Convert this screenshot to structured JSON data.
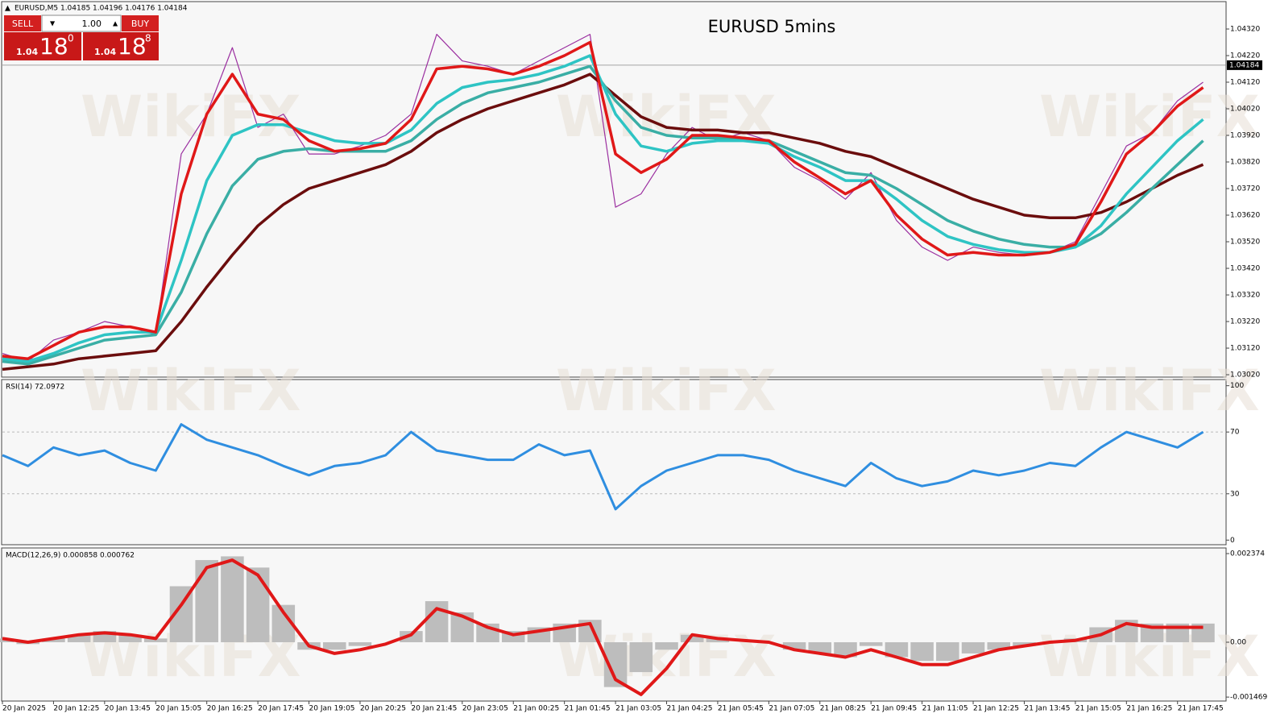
{
  "header": {
    "symbol_info": "EURUSD,M5  1.04185 1.04196 1.04176 1.04184",
    "sell": "SELL",
    "buy": "BUY",
    "lot": "1.00",
    "sell_big": "1.04",
    "sell_pips": "18",
    "sell_frac": "0",
    "buy_big": "1.04",
    "buy_pips": "18",
    "buy_frac": "8",
    "watermark": "WikiFX"
  },
  "chart_data": [
    {
      "type": "line",
      "title": "EURUSD 5mins",
      "x": [
        0,
        1,
        2,
        3,
        4,
        5,
        6,
        7,
        8,
        9,
        10,
        11,
        12,
        13,
        14,
        15,
        16,
        17,
        18,
        19,
        20,
        21,
        22,
        23,
        24,
        25,
        26,
        27,
        28,
        29,
        30,
        31,
        32,
        33,
        34,
        35,
        36,
        37,
        38,
        39,
        40,
        41,
        42,
        43,
        44,
        45,
        46,
        47
      ],
      "xlim": [
        0,
        47.9
      ],
      "series": [
        {
          "color": "#9b2fa0",
          "values": [
            1.031,
            1.0307,
            1.0315,
            1.0318,
            1.0322,
            1.032,
            1.0317,
            1.0385,
            1.04,
            1.0425,
            1.0395,
            1.04,
            1.0385,
            1.0385,
            1.0388,
            1.0392,
            1.04,
            1.043,
            1.042,
            1.0418,
            1.0415,
            1.042,
            1.0425,
            1.043,
            1.0365,
            1.037,
            1.0385,
            1.0395,
            1.039,
            1.0393,
            1.039,
            1.038,
            1.0375,
            1.0368,
            1.0378,
            1.036,
            1.035,
            1.0345,
            1.035,
            1.0348,
            1.0347,
            1.0348,
            1.0352,
            1.037,
            1.0388,
            1.0393,
            1.0405,
            1.0412
          ]
        },
        {
          "color": "#6b0d0d",
          "values": [
            1.0304,
            1.0305,
            1.0306,
            1.0308,
            1.0309,
            1.031,
            1.0311,
            1.0322,
            1.0335,
            1.0347,
            1.0358,
            1.0366,
            1.0372,
            1.0375,
            1.0378,
            1.0381,
            1.0386,
            1.0393,
            1.0398,
            1.0402,
            1.0405,
            1.0408,
            1.0411,
            1.0415,
            1.0407,
            1.0399,
            1.0395,
            1.0394,
            1.0394,
            1.0393,
            1.0393,
            1.0391,
            1.0389,
            1.0386,
            1.0384,
            1.038,
            1.0376,
            1.0372,
            1.0368,
            1.0365,
            1.0362,
            1.0361,
            1.0361,
            1.0363,
            1.0367,
            1.0372,
            1.0377,
            1.0381
          ]
        },
        {
          "color": "#3aaea5",
          "values": [
            1.0307,
            1.0306,
            1.0309,
            1.0312,
            1.0315,
            1.0316,
            1.0317,
            1.0333,
            1.0355,
            1.0373,
            1.0383,
            1.0386,
            1.0387,
            1.0386,
            1.0386,
            1.0386,
            1.039,
            1.0398,
            1.0404,
            1.0408,
            1.041,
            1.0412,
            1.0415,
            1.0418,
            1.0405,
            1.0395,
            1.0392,
            1.0391,
            1.0391,
            1.0391,
            1.039,
            1.0386,
            1.0382,
            1.0378,
            1.0377,
            1.0372,
            1.0366,
            1.036,
            1.0356,
            1.0353,
            1.0351,
            1.035,
            1.035,
            1.0355,
            1.0363,
            1.0372,
            1.0381,
            1.039
          ]
        },
        {
          "color": "#2ec4c4",
          "values": [
            1.0308,
            1.0307,
            1.031,
            1.0314,
            1.0317,
            1.0318,
            1.0318,
            1.0345,
            1.0375,
            1.0392,
            1.0396,
            1.0396,
            1.0393,
            1.039,
            1.0389,
            1.0389,
            1.0394,
            1.0404,
            1.041,
            1.0412,
            1.0413,
            1.0415,
            1.0418,
            1.0422,
            1.04,
            1.0388,
            1.0386,
            1.0389,
            1.039,
            1.039,
            1.0389,
            1.0384,
            1.038,
            1.0375,
            1.0375,
            1.0368,
            1.036,
            1.0354,
            1.0351,
            1.0349,
            1.0348,
            1.0348,
            1.035,
            1.0358,
            1.037,
            1.038,
            1.039,
            1.0398
          ]
        },
        {
          "color": "#e01818",
          "values": [
            1.0309,
            1.0308,
            1.0313,
            1.0318,
            1.032,
            1.032,
            1.0318,
            1.037,
            1.04,
            1.0415,
            1.04,
            1.0398,
            1.039,
            1.0386,
            1.0387,
            1.0389,
            1.0398,
            1.0417,
            1.0418,
            1.0417,
            1.0415,
            1.0418,
            1.0422,
            1.0427,
            1.0385,
            1.0378,
            1.0383,
            1.0392,
            1.0392,
            1.0391,
            1.039,
            1.0382,
            1.0376,
            1.037,
            1.0375,
            1.0362,
            1.0353,
            1.0347,
            1.0348,
            1.0347,
            1.0347,
            1.0348,
            1.0351,
            1.0367,
            1.0385,
            1.0393,
            1.0403,
            1.041
          ]
        }
      ],
      "ylim": [
        1.03011,
        1.04423
      ],
      "yticks": [
        {
          "value": 1.0302,
          "label": "1.03020"
        },
        {
          "value": 1.0312,
          "label": "1.03120"
        },
        {
          "value": 1.0322,
          "label": "1.03220"
        },
        {
          "value": 1.0332,
          "label": "1.03320"
        },
        {
          "value": 1.0342,
          "label": "1.03420"
        },
        {
          "value": 1.0352,
          "label": "1.03520"
        },
        {
          "value": 1.0362,
          "label": "1.03620"
        },
        {
          "value": 1.0372,
          "label": "1.03720"
        },
        {
          "value": 1.0382,
          "label": "1.03820"
        },
        {
          "value": 1.0392,
          "label": "1.03920"
        },
        {
          "value": 1.0402,
          "label": "1.04020"
        },
        {
          "value": 1.0412,
          "label": "1.04120"
        },
        {
          "value": 1.0422,
          "label": "1.04220"
        },
        {
          "value": 1.0432,
          "label": "1.04320"
        }
      ],
      "current_price": {
        "value": 1.04184,
        "label": "1.04184"
      }
    },
    {
      "type": "line",
      "title": "RSI(14) 72.0972",
      "x": [
        0,
        1,
        2,
        3,
        4,
        5,
        6,
        7,
        8,
        9,
        10,
        11,
        12,
        13,
        14,
        15,
        16,
        17,
        18,
        19,
        20,
        21,
        22,
        23,
        24,
        25,
        26,
        27,
        28,
        29,
        30,
        31,
        32,
        33,
        34,
        35,
        36,
        37,
        38,
        39,
        40,
        41,
        42,
        43,
        44,
        45,
        46,
        47
      ],
      "xlim": [
        0,
        47.9
      ],
      "series": [
        {
          "color": "#2f8ee0",
          "values": [
            55,
            48,
            60,
            55,
            58,
            50,
            45,
            75,
            65,
            60,
            55,
            48,
            42,
            48,
            50,
            55,
            70,
            58,
            55,
            52,
            52,
            62,
            55,
            58,
            20,
            35,
            45,
            50,
            55,
            55,
            52,
            45,
            40,
            35,
            50,
            40,
            35,
            38,
            45,
            42,
            45,
            50,
            48,
            60,
            70,
            65,
            60,
            70
          ]
        }
      ],
      "ylim": [
        -3,
        104
      ],
      "yticks": [
        0,
        30,
        70,
        100
      ],
      "levels": [
        30,
        70
      ]
    },
    {
      "type": "macd",
      "title": "MACD(12,26,9) 0.000858 0.000762",
      "x": [
        0,
        1,
        2,
        3,
        4,
        5,
        6,
        7,
        8,
        9,
        10,
        11,
        12,
        13,
        14,
        15,
        16,
        17,
        18,
        19,
        20,
        21,
        22,
        23,
        24,
        25,
        26,
        27,
        28,
        29,
        30,
        31,
        32,
        33,
        34,
        35,
        36,
        37,
        38,
        39,
        40,
        41,
        42,
        43,
        44,
        45,
        46,
        47
      ],
      "xlim": [
        0,
        47.9
      ],
      "series": [
        {
          "color": "#bdbdbd",
          "values": [
            0.0001,
            -5e-05,
            0.0001,
            0.0002,
            0.0003,
            0.0002,
            0.0001,
            0.0015,
            0.0022,
            0.0023,
            0.002,
            0.001,
            -0.0002,
            -0.0002,
            -0.0001,
            0,
            0.0003,
            0.0011,
            0.0008,
            0.0005,
            0.0003,
            0.0004,
            0.0005,
            0.0006,
            -0.0012,
            -0.0008,
            -0.0002,
            0.0002,
            0.0001,
            0,
            0,
            -0.0002,
            -0.0003,
            -0.0004,
            -0.0001,
            -0.0004,
            -0.0005,
            -0.0005,
            -0.0003,
            -0.0002,
            -0.0001,
            0,
            0.0001,
            0.0004,
            0.0006,
            0.0005,
            0.0005,
            0.0005
          ]
        },
        {
          "color": "#e01818",
          "values": [
            0.0001,
            0,
            0.0001,
            0.0002,
            0.00025,
            0.0002,
            0.0001,
            0.001,
            0.002,
            0.0022,
            0.0018,
            0.0008,
            -0.0001,
            -0.0003,
            -0.0002,
            -5e-05,
            0.0002,
            0.0009,
            0.0007,
            0.0004,
            0.0002,
            0.0003,
            0.0004,
            0.0005,
            -0.001,
            -0.0014,
            -0.0007,
            0.0002,
            0.0001,
            5e-05,
            0,
            -0.0002,
            -0.0003,
            -0.0004,
            -0.0002,
            -0.0004,
            -0.0006,
            -0.0006,
            -0.0004,
            -0.0002,
            -0.0001,
            0,
            5e-05,
            0.0002,
            0.0005,
            0.0004,
            0.0004,
            0.0004
          ]
        }
      ],
      "ylim": [
        -0.001575,
        0.002525
      ],
      "yticks": [
        0.002374,
        {
          "value": 0,
          "label": "0.00"
        },
        -0.001469
      ],
      "xticks": [
        {
          "value": 0,
          "label": "20 Jan 2025"
        },
        {
          "value": 2,
          "label": "20 Jan 12:25"
        },
        {
          "value": 4,
          "label": "20 Jan 13:45"
        },
        {
          "value": 6,
          "label": "20 Jan 15:05"
        },
        {
          "value": 8,
          "label": "20 Jan 16:25"
        },
        {
          "value": 10,
          "label": "20 Jan 17:45"
        },
        {
          "value": 12,
          "label": "20 Jan 19:05"
        },
        {
          "value": 14,
          "label": "20 Jan 20:25"
        },
        {
          "value": 16,
          "label": "20 Jan 21:45"
        },
        {
          "value": 18,
          "label": "20 Jan 23:05"
        },
        {
          "value": 20,
          "label": "21 Jan 00:25"
        },
        {
          "value": 22,
          "label": "21 Jan 01:45"
        },
        {
          "value": 24,
          "label": "21 Jan 03:05"
        },
        {
          "value": 26,
          "label": "21 Jan 04:25"
        },
        {
          "value": 28,
          "label": "21 Jan 05:45"
        },
        {
          "value": 30,
          "label": "21 Jan 07:05"
        },
        {
          "value": 32,
          "label": "21 Jan 08:25"
        },
        {
          "value": 34,
          "label": "21 Jan 09:45"
        },
        {
          "value": 36,
          "label": "21 Jan 11:05"
        },
        {
          "value": 38,
          "label": "21 Jan 12:25"
        },
        {
          "value": 40,
          "label": "21 Jan 13:45"
        },
        {
          "value": 42,
          "label": "21 Jan 15:05"
        },
        {
          "value": 44,
          "label": "21 Jan 16:25"
        },
        {
          "value": 46,
          "label": "21 Jan 17:45"
        }
      ]
    }
  ]
}
